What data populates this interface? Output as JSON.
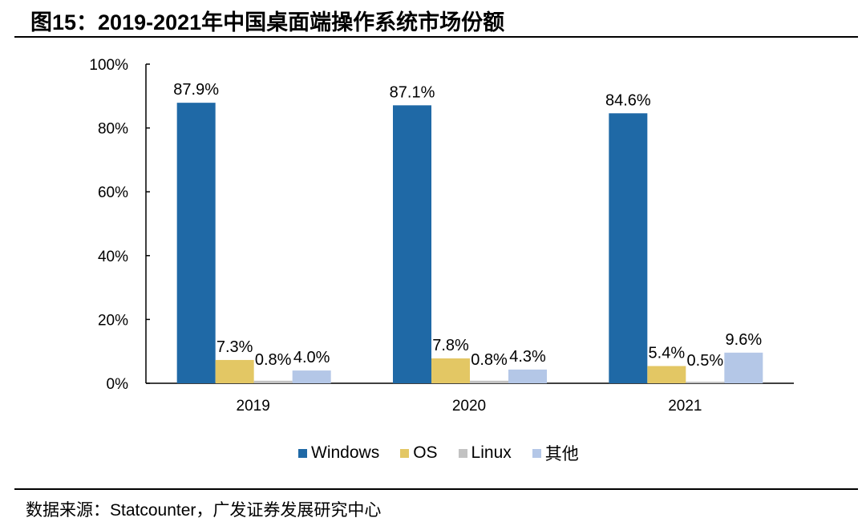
{
  "title": "图15：2019-2021年中国桌面端操作系统市场份额",
  "source": "数据来源：Statcounter，广发证券发展研究中心",
  "chart_data": {
    "type": "bar",
    "title": "2019-2021年中国桌面端操作系统市场份额",
    "categories": [
      "2019",
      "2020",
      "2021"
    ],
    "series": [
      {
        "name": "Windows",
        "color": "#1F69A6",
        "values": [
          87.9,
          87.1,
          84.6
        ],
        "labels": [
          "87.9%",
          "87.1%",
          "84.6%"
        ]
      },
      {
        "name": "OS",
        "color": "#E3C764",
        "values": [
          7.3,
          7.8,
          5.4
        ],
        "labels": [
          "7.3%",
          "7.8%",
          "5.4%"
        ]
      },
      {
        "name": "Linux",
        "color": "#C2C2C2",
        "values": [
          0.8,
          0.8,
          0.5
        ],
        "labels": [
          "0.8%",
          "0.8%",
          "0.5%"
        ]
      },
      {
        "name": "其他",
        "color": "#B4C7E7",
        "values": [
          4.0,
          4.3,
          9.6
        ],
        "labels": [
          "4.0%",
          "4.3%",
          "9.6%"
        ]
      }
    ],
    "ylim": [
      0,
      100
    ],
    "yticks": [
      "0%",
      "20%",
      "40%",
      "60%",
      "80%",
      "100%"
    ],
    "ytick_values": [
      0,
      20,
      40,
      60,
      80,
      100
    ],
    "xlabel": "",
    "ylabel": "",
    "grid": false,
    "legend_position": "bottom"
  }
}
